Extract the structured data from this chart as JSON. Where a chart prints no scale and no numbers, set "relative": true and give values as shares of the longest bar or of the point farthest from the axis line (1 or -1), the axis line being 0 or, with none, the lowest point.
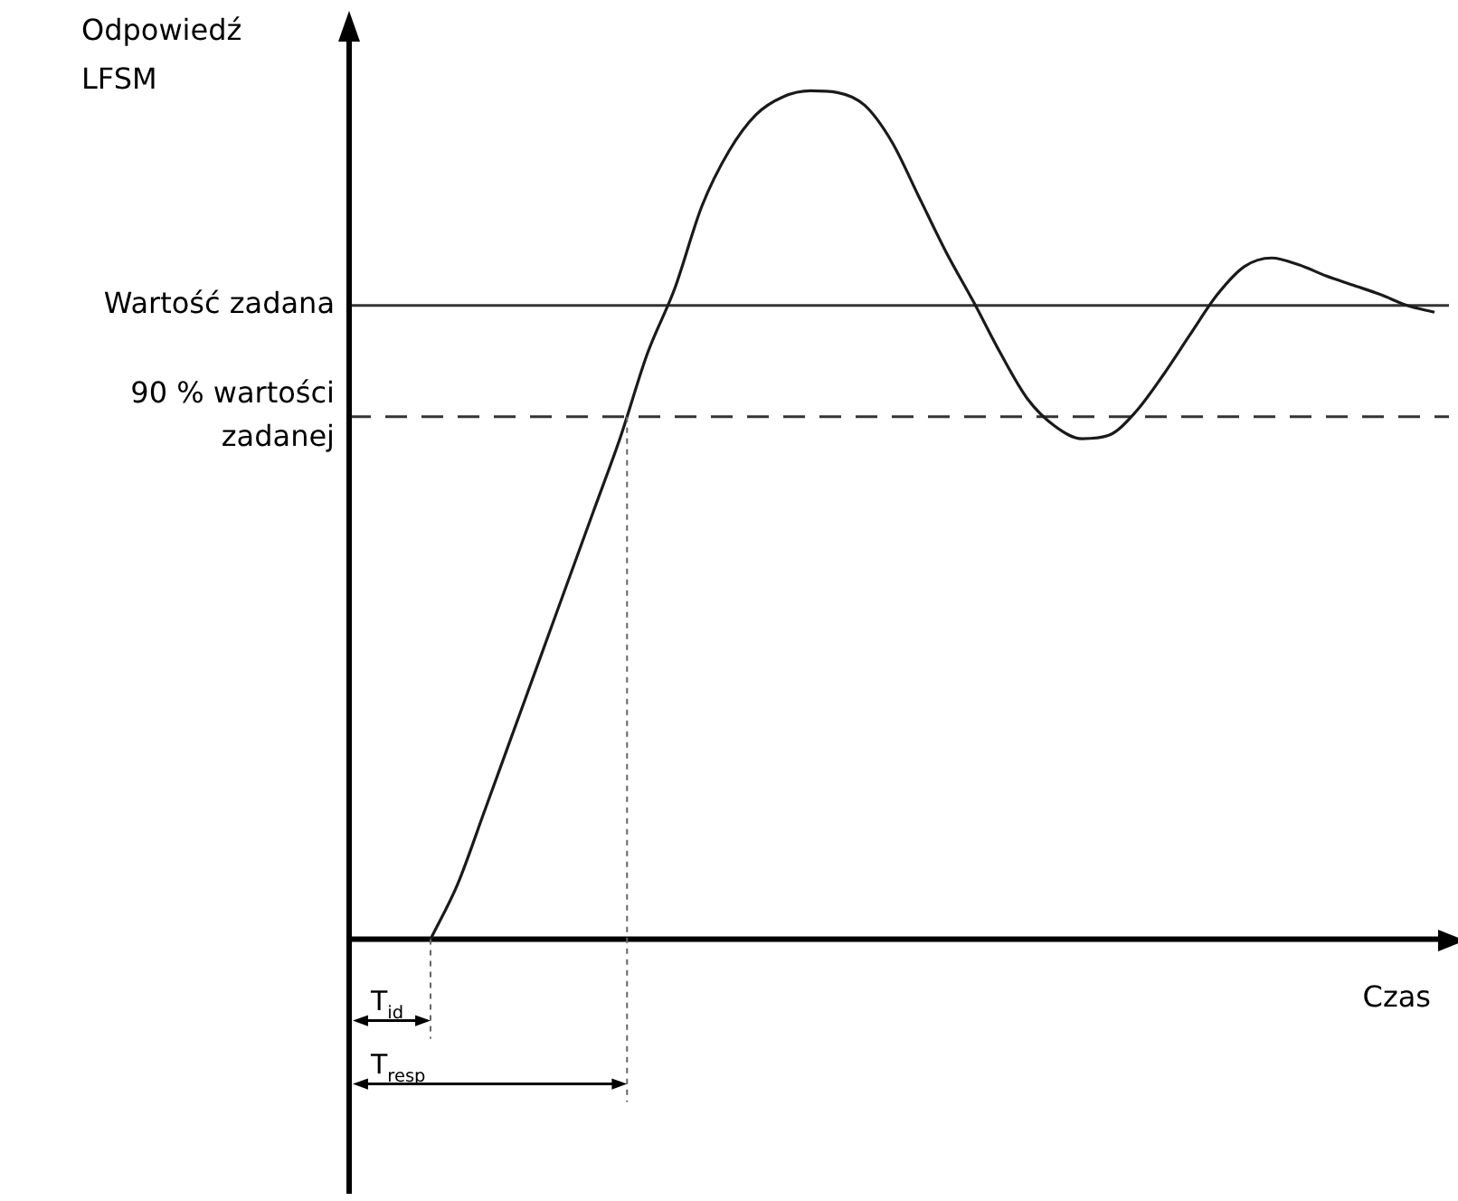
{
  "chart_data": {
    "type": "line",
    "xlabel": "Czas",
    "ylabel": "Odpowiedź LFSM",
    "relative": true,
    "legend": false,
    "grid": false,
    "tick_labels": false,
    "marker": "none",
    "color": "#1a1a1a",
    "categories": [
      null,
      null,
      null,
      null,
      null,
      null,
      null,
      null,
      null,
      null,
      null,
      null,
      null,
      null,
      null,
      null,
      null,
      null,
      null,
      null,
      null,
      null,
      null,
      null,
      null,
      null,
      null,
      null,
      null,
      null,
      null,
      null,
      null,
      null,
      null,
      null,
      null,
      null,
      null,
      null,
      null
    ],
    "values": [
      null,
      null,
      null,
      0,
      0.065,
      0.152,
      0.24,
      0.328,
      0.416,
      0.504,
      0.592,
      0.691,
      0.767,
      0.864,
      0.929,
      0.972,
      0.993,
      1.0,
      0.998,
      0.983,
      0.94,
      0.875,
      0.81,
      0.752,
      0.691,
      0.637,
      0.605,
      0.59,
      0.594,
      0.622,
      0.665,
      0.713,
      0.76,
      0.793,
      0.803,
      0.795,
      0.782,
      0.771,
      0.76,
      0.747,
      0.739
    ],
    "ref_lines": [
      {
        "axis": "y",
        "value": 0.747,
        "label": "Wartość zadana",
        "line_style": "solid",
        "color": "#333333"
      },
      {
        "axis": "y",
        "value": 0.616,
        "label": "90 % wartości zadanej",
        "line_style": "dashed",
        "color": "#333333"
      }
    ],
    "annotations": [
      "T$_{id}$",
      "T$_{resp}$"
    ]
  }
}
